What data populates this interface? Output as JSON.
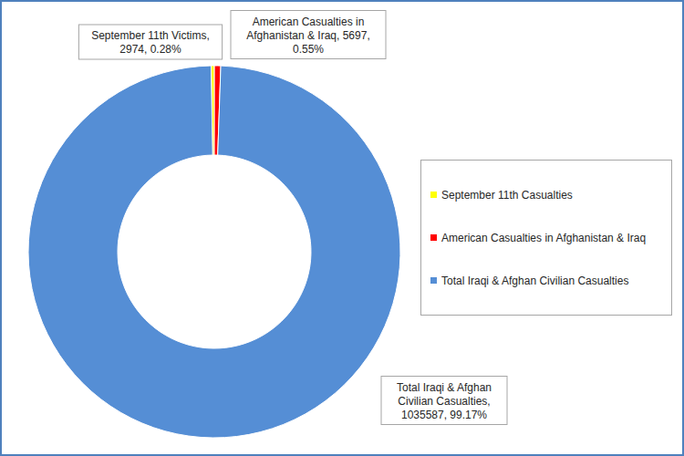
{
  "chart_data": {
    "type": "pie",
    "categories": [
      "September 11th Casualties",
      "American Casualties in Afghanistan & Iraq",
      "Total Iraqi & Afghan Civilian Casualties"
    ],
    "values": [
      2974,
      5697,
      1035587
    ],
    "value_labels": [
      "September 11th Victims, 2974, 0.28%",
      "American Casualties in Afghanistan & Iraq, 5697, 0.55%",
      "Total Iraqi & Afghan Civilian Casualties, 1035587, 99.17%"
    ],
    "colors": [
      "#ffff00",
      "#ff0000",
      "#558ed5"
    ],
    "legend": "right",
    "data_labels": true
  }
}
